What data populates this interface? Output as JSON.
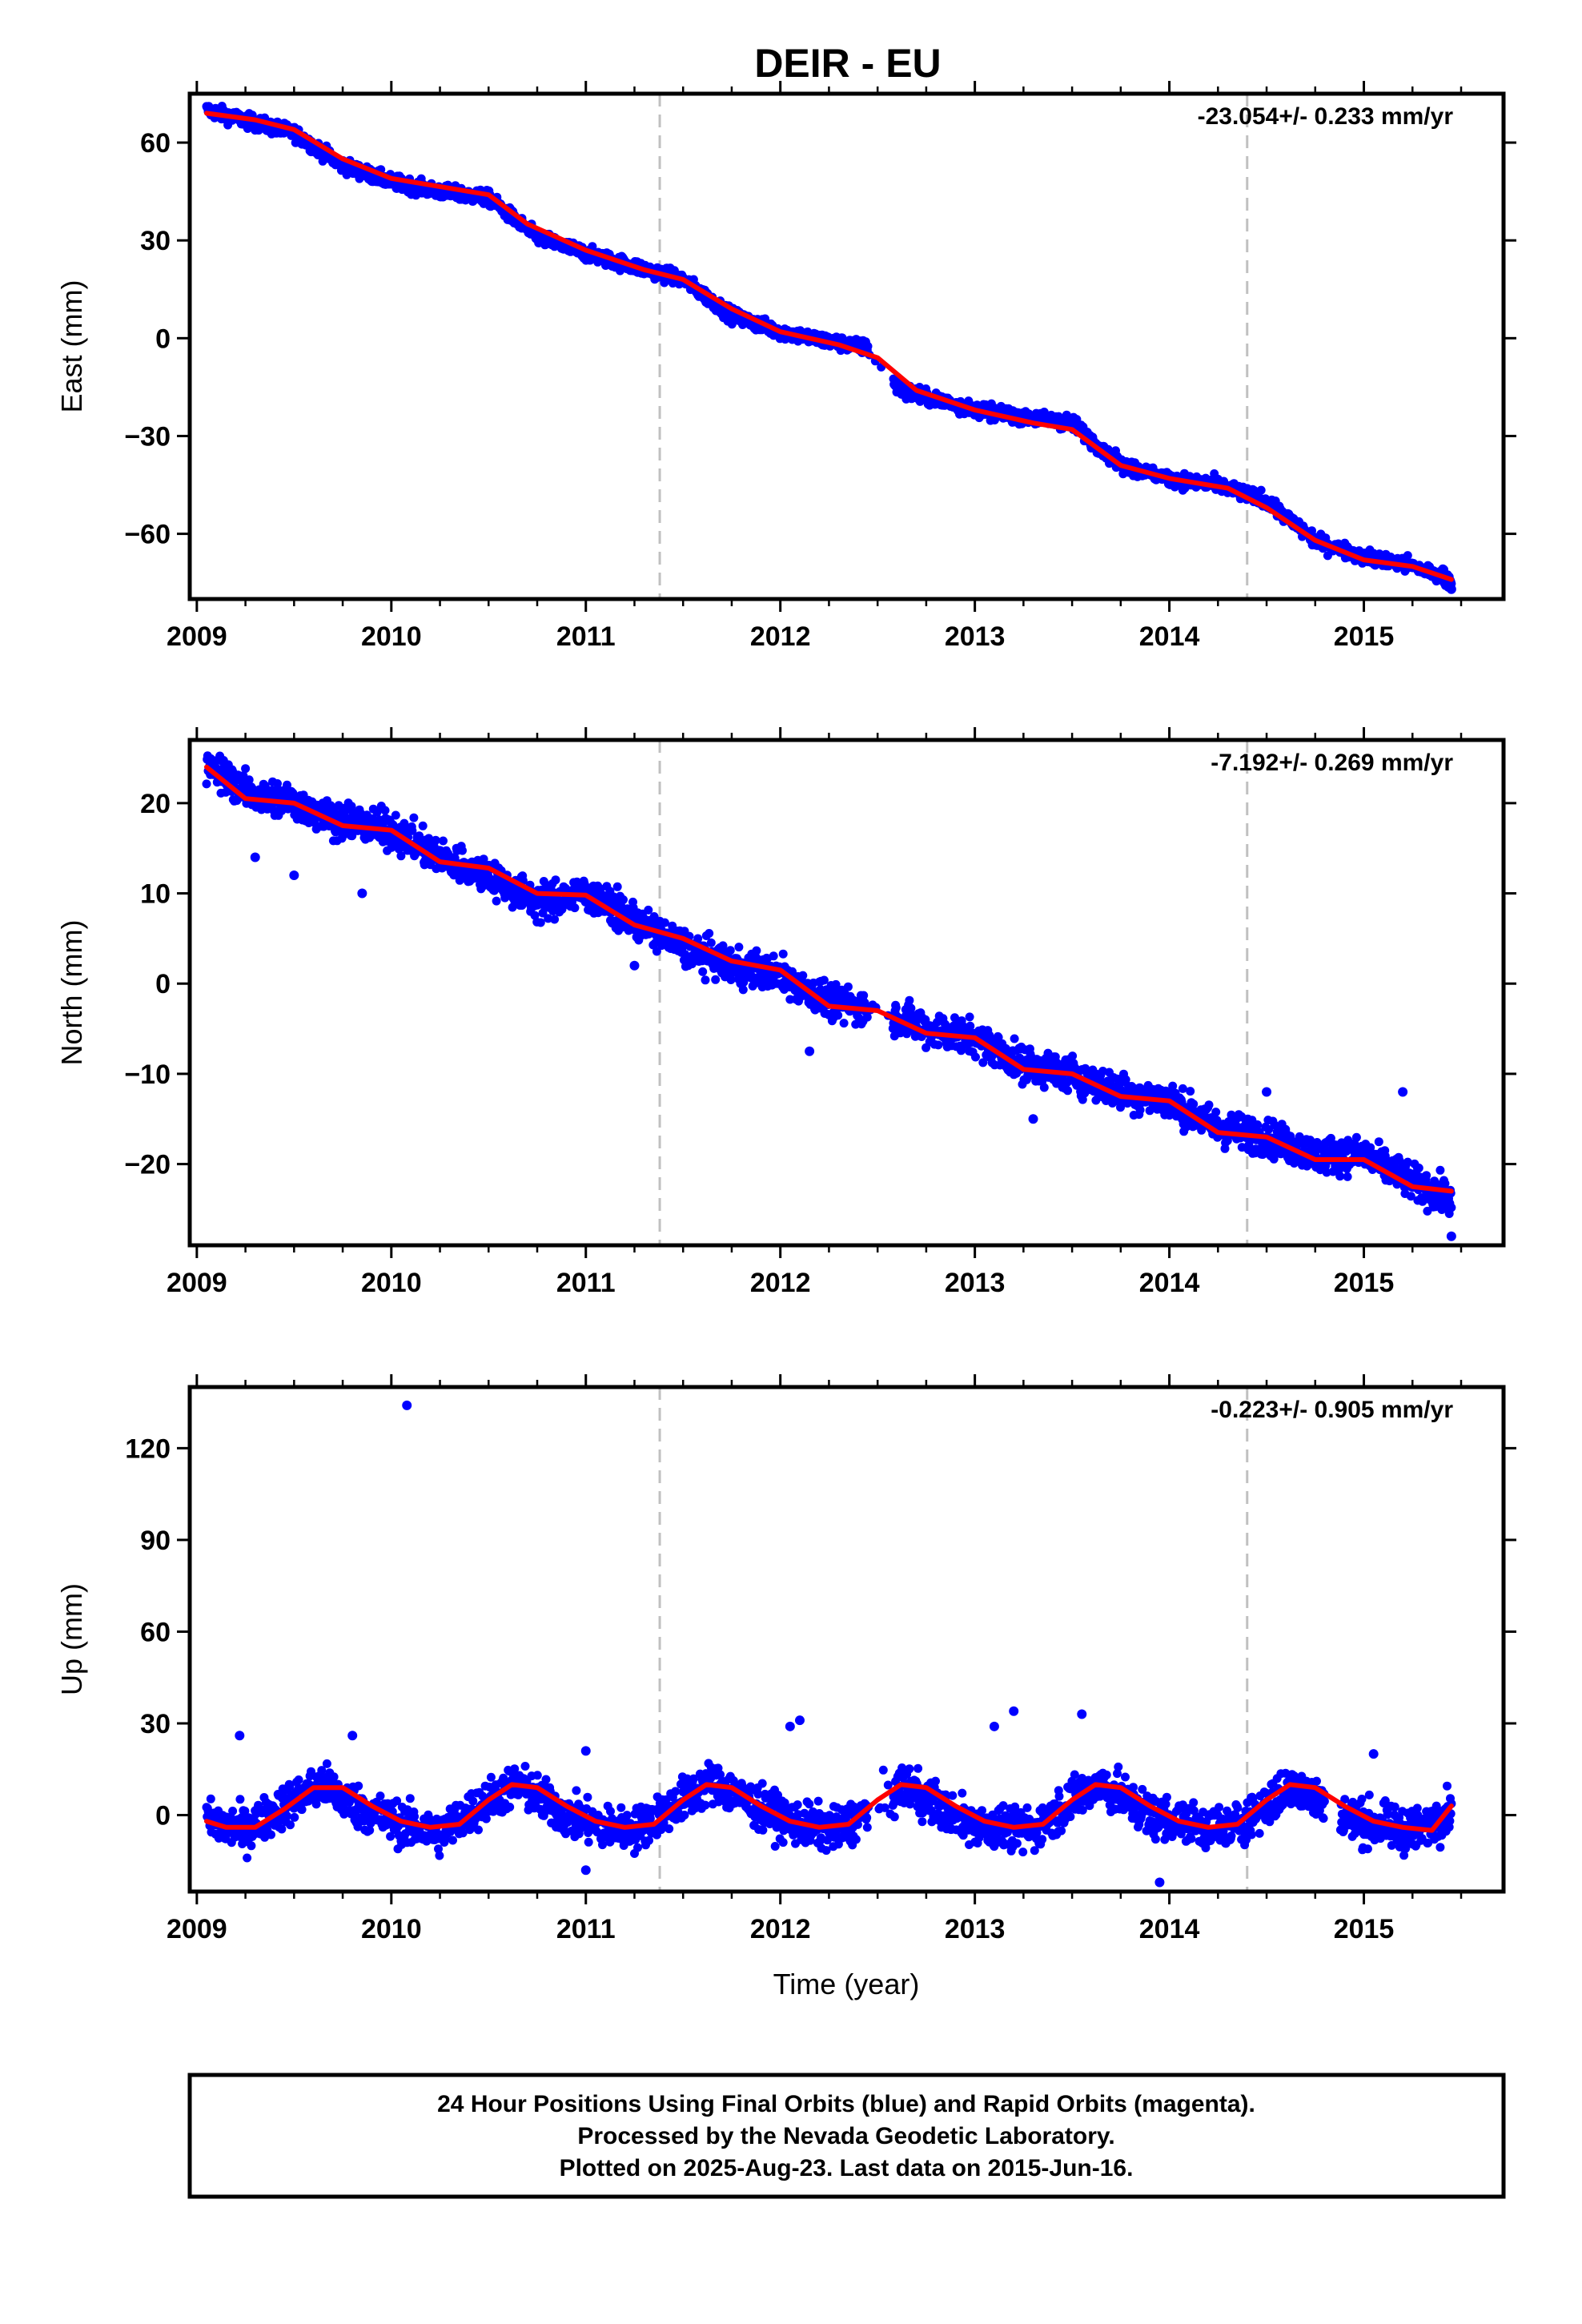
{
  "title": "DEIR - EU",
  "footer": {
    "lines": [
      "24 Hour Positions Using Final Orbits (blue) and Rapid Orbits (magenta).",
      "Processed by the Nevada Geodetic Laboratory.",
      "Plotted on 2025-Aug-23. Last data on 2015-Jun-16."
    ]
  },
  "colors": {
    "final_orbits": "#0000ff",
    "fit": "#ff0000",
    "event_lines": "#c0c0c0",
    "frame": "#000000"
  },
  "x_tick_labels": [
    "2009",
    "2010",
    "2011",
    "2012",
    "2013",
    "2014",
    "2015"
  ],
  "chart_data": [
    {
      "type": "scatter",
      "panel": "east",
      "ylabel": "East (mm)",
      "xlabel": "",
      "xlim": [
        2008.95,
        2015.62
      ],
      "ylim": [
        -80,
        75
      ],
      "yticks": [
        -60,
        -30,
        0,
        30,
        60
      ],
      "rate_label": "-23.054+/- 0.233 mm/yr",
      "event_lines_x": [
        2011.38,
        2014.4
      ],
      "series": [
        {
          "role": "daily positions",
          "points_sampled": [
            [
              2009.05,
              70
            ],
            [
              2009.3,
              66
            ],
            [
              2009.5,
              63
            ],
            [
              2009.75,
              53
            ],
            [
              2010.0,
              48
            ],
            [
              2010.25,
              45
            ],
            [
              2010.5,
              43
            ],
            [
              2010.75,
              31
            ],
            [
              2011.0,
              26
            ],
            [
              2011.25,
              22
            ],
            [
              2011.5,
              18
            ],
            [
              2011.75,
              7
            ],
            [
              2012.0,
              2
            ],
            [
              2012.25,
              -1
            ],
            [
              2012.45,
              -3
            ],
            [
              2012.6,
              -15
            ],
            [
              2012.75,
              -18
            ],
            [
              2013.0,
              -22
            ],
            [
              2013.25,
              -24
            ],
            [
              2013.5,
              -26
            ],
            [
              2013.75,
              -39
            ],
            [
              2014.0,
              -43
            ],
            [
              2014.25,
              -45
            ],
            [
              2014.5,
              -50
            ],
            [
              2014.75,
              -62
            ],
            [
              2015.0,
              -67
            ],
            [
              2015.25,
              -70
            ],
            [
              2015.45,
              -74
            ]
          ],
          "outliers": [
            [
              2012.6,
              -15
            ],
            [
              2015.45,
              -77
            ]
          ]
        },
        {
          "role": "model fit",
          "x": [
            2009.05,
            2009.3,
            2009.5,
            2009.75,
            2010.0,
            2010.3,
            2010.5,
            2010.7,
            2011.0,
            2011.3,
            2011.5,
            2011.75,
            2012.0,
            2012.3,
            2012.5,
            2012.7,
            2013.0,
            2013.3,
            2013.5,
            2013.75,
            2014.0,
            2014.3,
            2014.5,
            2014.75,
            2015.0,
            2015.25,
            2015.45
          ],
          "y": [
            69,
            67,
            64,
            55,
            49,
            46,
            44,
            35,
            27,
            21,
            18,
            9,
            2,
            -2,
            -6,
            -16,
            -22,
            -26,
            -28,
            -39,
            -43,
            -46,
            -52,
            -62,
            -68,
            -70,
            -74
          ]
        }
      ]
    },
    {
      "type": "scatter",
      "panel": "north",
      "ylabel": "North (mm)",
      "xlabel": "",
      "xlim": [
        2008.95,
        2015.62
      ],
      "ylim": [
        -29,
        27
      ],
      "yticks": [
        -20,
        -10,
        0,
        10,
        20
      ],
      "rate_label": "-7.192+/- 0.269 mm/yr",
      "event_lines_x": [
        2011.38,
        2014.4
      ],
      "series": [
        {
          "role": "daily positions",
          "points_sampled": [
            [
              2009.05,
              24
            ],
            [
              2009.3,
              21
            ],
            [
              2009.5,
              20
            ],
            [
              2009.75,
              18
            ],
            [
              2010.0,
              17
            ],
            [
              2010.25,
              14
            ],
            [
              2010.5,
              12
            ],
            [
              2010.75,
              9
            ],
            [
              2011.0,
              10
            ],
            [
              2011.25,
              7
            ],
            [
              2011.5,
              4
            ],
            [
              2011.75,
              2
            ],
            [
              2012.0,
              1
            ],
            [
              2012.25,
              -2
            ],
            [
              2012.5,
              -3
            ],
            [
              2012.75,
              -5
            ],
            [
              2013.0,
              -6
            ],
            [
              2013.25,
              -9
            ],
            [
              2013.5,
              -10
            ],
            [
              2013.75,
              -12
            ],
            [
              2014.0,
              -13
            ],
            [
              2014.25,
              -16
            ],
            [
              2014.5,
              -17
            ],
            [
              2014.75,
              -19
            ],
            [
              2015.0,
              -19
            ],
            [
              2015.25,
              -22
            ],
            [
              2015.45,
              -24
            ]
          ],
          "outliers": [
            [
              2009.3,
              14
            ],
            [
              2009.5,
              12
            ],
            [
              2009.85,
              10
            ],
            [
              2011.25,
              2
            ],
            [
              2012.15,
              -7.5
            ],
            [
              2013.3,
              -15
            ],
            [
              2014.5,
              -12
            ],
            [
              2015.2,
              -12
            ],
            [
              2015.45,
              -28
            ]
          ]
        },
        {
          "role": "model fit",
          "x": [
            2009.05,
            2009.25,
            2009.5,
            2009.75,
            2010.0,
            2010.25,
            2010.5,
            2010.75,
            2011.0,
            2011.25,
            2011.5,
            2011.75,
            2012.0,
            2012.25,
            2012.5,
            2012.75,
            2013.0,
            2013.25,
            2013.5,
            2013.75,
            2014.0,
            2014.25,
            2014.5,
            2014.75,
            2015.0,
            2015.25,
            2015.45
          ],
          "y": [
            24,
            20.5,
            20,
            17.5,
            17,
            13.5,
            12.8,
            10,
            9.8,
            6.5,
            5,
            2.5,
            1.5,
            -2.5,
            -3,
            -5.5,
            -6,
            -9.5,
            -10,
            -12.5,
            -13,
            -16.5,
            -17,
            -19.5,
            -19.5,
            -22.5,
            -23
          ]
        }
      ]
    },
    {
      "type": "scatter",
      "panel": "up",
      "ylabel": "Up (mm)",
      "xlabel": "Time (year)",
      "xlim": [
        2008.95,
        2015.62
      ],
      "ylim": [
        -25,
        140
      ],
      "yticks": [
        0,
        30,
        60,
        90,
        120
      ],
      "rate_label": "-0.223+/- 0.905 mm/yr",
      "event_lines_x": [
        2011.38,
        2014.4
      ],
      "series": [
        {
          "role": "daily positions",
          "points_sampled": [
            [
              2009.05,
              -2
            ],
            [
              2009.25,
              -5
            ],
            [
              2009.5,
              5
            ],
            [
              2009.65,
              10
            ],
            [
              2009.85,
              2
            ],
            [
              2010.1,
              -4
            ],
            [
              2010.25,
              -6
            ],
            [
              2010.5,
              5
            ],
            [
              2010.65,
              10
            ],
            [
              2010.9,
              0
            ],
            [
              2011.1,
              -4
            ],
            [
              2011.25,
              -5
            ],
            [
              2011.5,
              5
            ],
            [
              2011.65,
              11
            ],
            [
              2011.9,
              2
            ],
            [
              2012.1,
              -3
            ],
            [
              2012.3,
              -5
            ],
            [
              2012.65,
              10
            ],
            [
              2012.9,
              -1
            ],
            [
              2013.1,
              -4
            ],
            [
              2013.3,
              -5
            ],
            [
              2013.5,
              5
            ],
            [
              2013.65,
              10
            ],
            [
              2013.9,
              0
            ],
            [
              2014.1,
              -3
            ],
            [
              2014.3,
              -5
            ],
            [
              2014.55,
              5
            ],
            [
              2014.65,
              10
            ],
            [
              2014.9,
              -1
            ],
            [
              2015.1,
              -4
            ],
            [
              2015.3,
              -5
            ],
            [
              2015.45,
              3
            ]
          ],
          "outliers": [
            [
              2010.08,
              134
            ],
            [
              2009.22,
              26
            ],
            [
              2009.8,
              26
            ],
            [
              2011.0,
              21
            ],
            [
              2012.05,
              29
            ],
            [
              2012.1,
              31
            ],
            [
              2013.1,
              29
            ],
            [
              2013.2,
              34
            ],
            [
              2013.55,
              33
            ],
            [
              2013.95,
              -22
            ],
            [
              2015.05,
              20
            ],
            [
              2011.0,
              -18
            ]
          ]
        },
        {
          "role": "model fit",
          "x": [
            2009.05,
            2009.15,
            2009.3,
            2009.45,
            2009.6,
            2009.75,
            2009.9,
            2010.05,
            2010.2,
            2010.35,
            2010.5,
            2010.62,
            2010.75,
            2010.9,
            2011.05,
            2011.2,
            2011.35,
            2011.5,
            2011.62,
            2011.75,
            2011.9,
            2012.05,
            2012.2,
            2012.35,
            2012.5,
            2012.62,
            2012.75,
            2012.9,
            2013.05,
            2013.2,
            2013.35,
            2013.5,
            2013.62,
            2013.75,
            2013.9,
            2014.05,
            2014.2,
            2014.35,
            2014.5,
            2014.62,
            2014.75,
            2014.9,
            2015.05,
            2015.2,
            2015.35,
            2015.45
          ],
          "y": [
            -2,
            -4,
            -4,
            2,
            9,
            9,
            3,
            -2,
            -4,
            -3,
            5,
            10,
            9,
            3,
            -2,
            -4,
            -3,
            5,
            10,
            9,
            3,
            -2,
            -4,
            -3,
            5,
            10,
            9,
            3,
            -2,
            -4,
            -3,
            5,
            10,
            9,
            3,
            -2,
            -4,
            -3,
            5,
            10,
            9,
            3,
            -2,
            -4,
            -5,
            3
          ]
        }
      ]
    }
  ]
}
